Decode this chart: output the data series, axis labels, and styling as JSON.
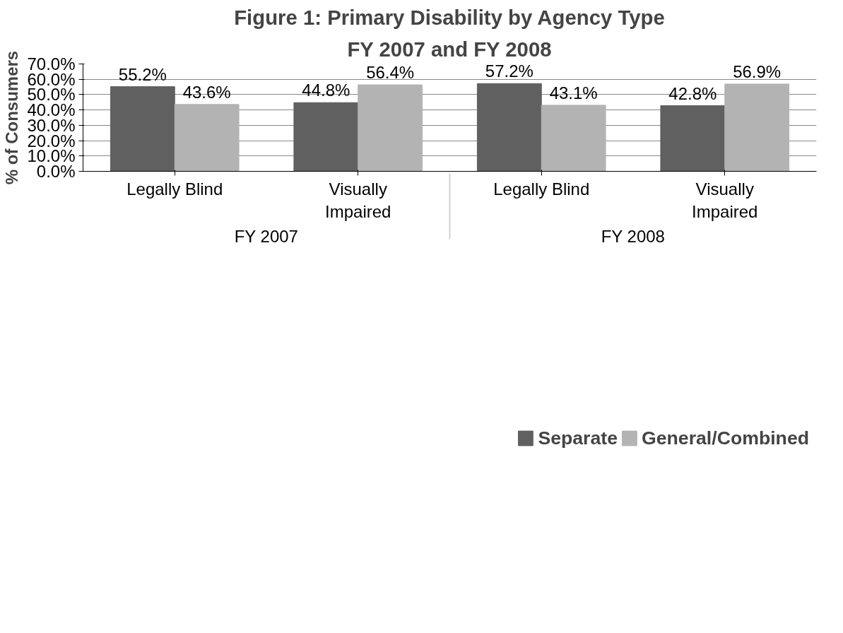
{
  "chart_data": {
    "type": "bar",
    "title": "Figure 1: Primary Disability by Agency Type",
    "subtitle": "FY 2007 and FY 2008",
    "ylabel": "% of Consumers",
    "categories": [
      "Legally Blind",
      "Visually Impaired",
      "Legally Blind",
      "Visually Impaired"
    ],
    "annotations": [
      "FY 2007",
      "FY 2008"
    ],
    "series": [
      {
        "name": "Separate",
        "color": "#606060",
        "values": [
          55.2,
          44.8,
          57.2,
          42.8
        ],
        "value_labels": [
          "55.2%",
          "44.8%",
          "57.2%",
          "42.8%"
        ]
      },
      {
        "name": "General/Combined",
        "color": "#b3b3b3",
        "values": [
          43.6,
          56.4,
          43.1,
          56.9
        ],
        "value_labels": [
          "43.6%",
          "56.4%",
          "43.1%",
          "56.9%"
        ]
      }
    ],
    "ylim": [
      0,
      70
    ],
    "yticks": [
      {
        "value": 0,
        "label": "0.0%"
      },
      {
        "value": 10,
        "label": "10.0%"
      },
      {
        "value": 20,
        "label": "20.0%"
      },
      {
        "value": 30,
        "label": "30.0%"
      },
      {
        "value": 40,
        "label": "40.0%"
      },
      {
        "value": 50,
        "label": "50.0%"
      },
      {
        "value": 60,
        "label": "60.0%"
      },
      {
        "value": 70,
        "label": "70.0%"
      }
    ],
    "grid": "y",
    "legend": "bottom"
  }
}
